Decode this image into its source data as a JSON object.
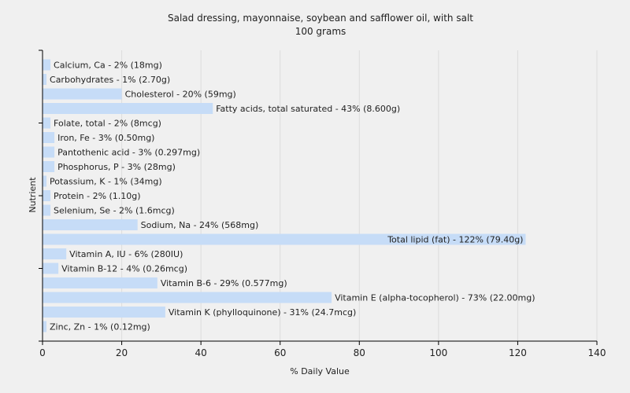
{
  "chart_data": {
    "type": "bar",
    "orientation": "horizontal",
    "title": "Salad dressing, mayonnaise, soybean and safflower oil, with salt",
    "subtitle": "100 grams",
    "xlabel": "% Daily Value",
    "ylabel": "Nutrient",
    "xlim": [
      0,
      140
    ],
    "xticks": [
      0,
      20,
      40,
      60,
      80,
      100,
      120,
      140
    ],
    "grid": true,
    "bar_color": "#c6dcf7",
    "categories": [
      "Calcium, Ca",
      "Carbohydrates",
      "Cholesterol",
      "Fatty acids, total saturated",
      "Folate, total",
      "Iron, Fe",
      "Pantothenic acid",
      "Phosphorus, P",
      "Potassium, K",
      "Protein",
      "Selenium, Se",
      "Sodium, Na",
      "Total lipid (fat)",
      "Vitamin A, IU",
      "Vitamin B-12",
      "Vitamin B-6",
      "Vitamin E (alpha-tocopherol)",
      "Vitamin K (phylloquinone)",
      "Zinc, Zn"
    ],
    "values": [
      2,
      1,
      20,
      43,
      2,
      3,
      3,
      3,
      1,
      2,
      2,
      24,
      122,
      6,
      4,
      29,
      73,
      31,
      1
    ],
    "labels": [
      "Calcium, Ca - 2% (18mg)",
      "Carbohydrates - 1% (2.70g)",
      "Cholesterol - 20% (59mg)",
      "Fatty acids, total saturated - 43% (8.600g)",
      "Folate, total - 2% (8mcg)",
      "Iron, Fe - 3% (0.50mg)",
      "Pantothenic acid - 3% (0.297mg)",
      "Phosphorus, P - 3% (28mg)",
      "Potassium, K - 1% (34mg)",
      "Protein - 2% (1.10g)",
      "Selenium, Se - 2% (1.6mcg)",
      "Sodium, Na - 24% (568mg)",
      "Total lipid (fat) - 122% (79.40g)",
      "Vitamin A, IU - 6% (280IU)",
      "Vitamin B-12 - 4% (0.26mcg)",
      "Vitamin B-6 - 29% (0.577mg)",
      "Vitamin E (alpha-tocopherol) - 73% (22.00mg)",
      "Vitamin K (phylloquinone) - 31% (24.7mcg)",
      "Zinc, Zn - 1% (0.12mg)"
    ]
  }
}
